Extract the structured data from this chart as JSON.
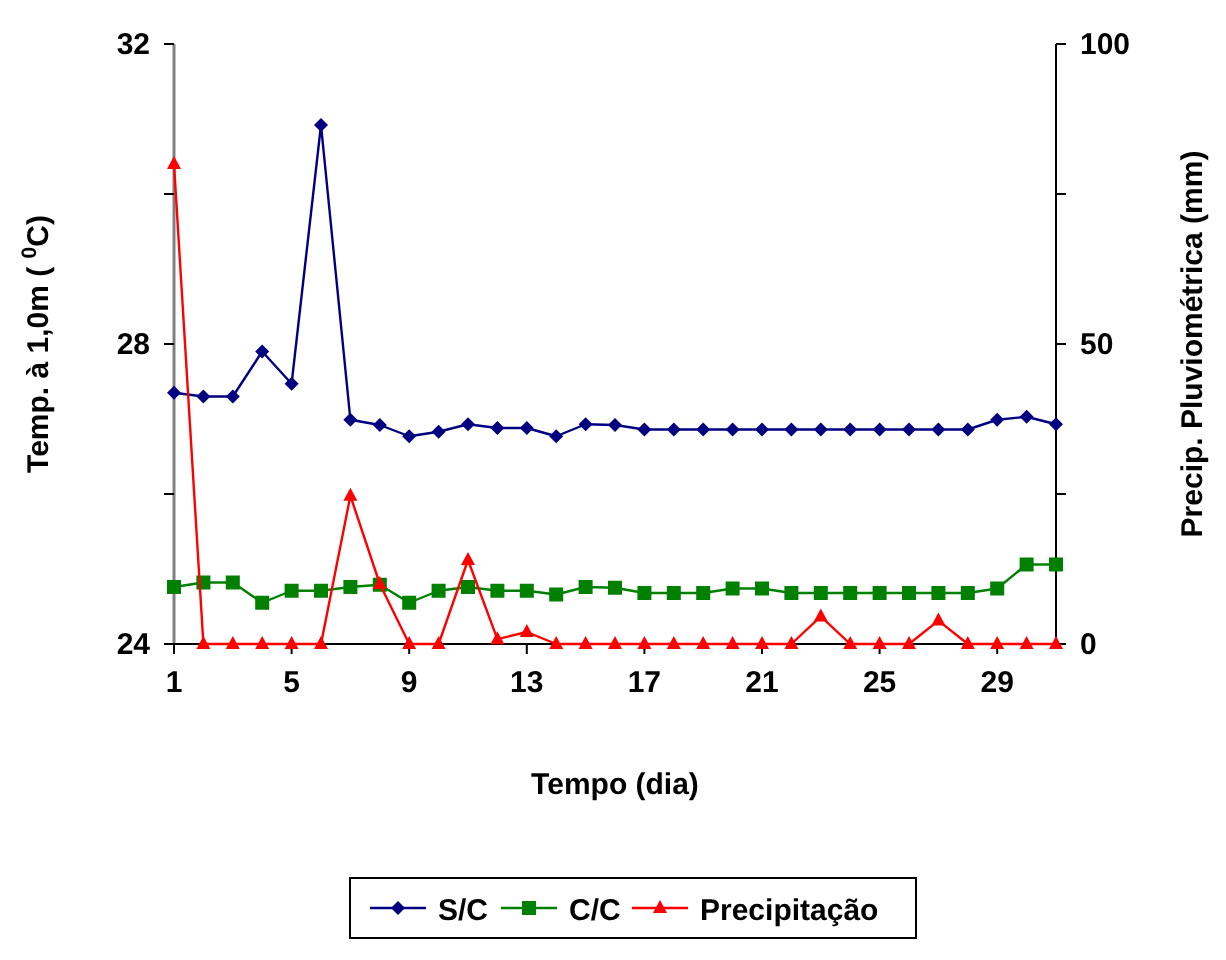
{
  "chart_data": {
    "type": "line",
    "xlabel": "Tempo (dia)",
    "ylabel": "Temp. à 1,0m ( $^{0}$C)",
    "y2label": "Precip. Pluviométrica (mm)",
    "x": [
      1,
      2,
      3,
      4,
      5,
      6,
      7,
      8,
      9,
      10,
      11,
      12,
      13,
      14,
      15,
      16,
      17,
      18,
      19,
      20,
      21,
      22,
      23,
      24,
      25,
      26,
      27,
      28,
      29,
      30,
      31
    ],
    "xlim": [
      1,
      31
    ],
    "xticks": [
      1,
      5,
      9,
      13,
      17,
      21,
      25,
      29
    ],
    "ylim": [
      24,
      32
    ],
    "yticks": [
      24,
      {
        "value": 26,
        "label": null
      },
      28,
      {
        "value": 30,
        "label": null
      },
      32
    ],
    "y2lim": [
      0,
      100
    ],
    "y2ticks": [
      0,
      {
        "value": 25,
        "label": null
      },
      50,
      {
        "value": 75,
        "label": null
      },
      100
    ],
    "legend": "bottom",
    "grid": false,
    "line_style": "solid",
    "series": [
      {
        "name": "S/C",
        "color": "#000080",
        "marker": "diamond",
        "values": [
          27.35,
          27.3,
          27.3,
          27.9,
          27.47,
          30.92,
          26.99,
          26.92,
          26.77,
          26.83,
          26.93,
          26.88,
          26.88,
          26.77,
          26.93,
          26.92,
          26.86,
          26.86,
          26.86,
          26.86,
          26.86,
          26.86,
          26.86,
          26.86,
          26.86,
          26.86,
          26.86,
          26.86,
          26.99,
          27.03,
          26.93
        ]
      },
      {
        "name": "C/C",
        "color": "#008000",
        "marker": "square",
        "values": [
          24.76,
          24.82,
          24.82,
          24.55,
          24.71,
          24.71,
          24.76,
          24.79,
          24.55,
          24.71,
          24.76,
          24.71,
          24.71,
          24.66,
          24.76,
          24.75,
          24.68,
          24.68,
          24.68,
          24.74,
          24.74,
          24.68,
          24.68,
          24.68,
          24.68,
          24.68,
          24.68,
          24.68,
          24.74,
          25.06,
          25.06
        ]
      },
      {
        "name": "Precipitação",
        "color": "#ff0000",
        "marker": "triangle",
        "axis": "y2",
        "values": [
          80,
          0,
          0,
          0,
          0,
          0,
          24.7,
          10,
          0,
          0,
          14,
          0.8,
          2,
          0,
          0,
          0,
          0,
          0,
          0,
          0,
          0,
          0,
          4.6,
          0,
          0,
          0,
          3.9,
          0,
          0,
          0,
          0
        ]
      }
    ]
  }
}
